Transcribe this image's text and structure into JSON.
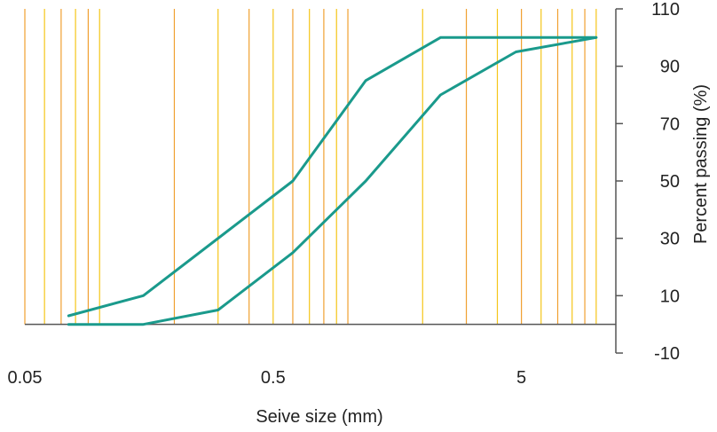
{
  "chart_data": {
    "type": "line",
    "title": "",
    "xlabel": "Seive size (mm)",
    "ylabel": "Percent passing (%)",
    "x_scale": "log",
    "xlim": [
      0.05,
      12
    ],
    "ylim": [
      -10,
      110
    ],
    "x_ticks": [
      0.05,
      0.5,
      5
    ],
    "x_tick_labels": [
      "0.05",
      "0.5",
      "5"
    ],
    "y_ticks": [
      110,
      90,
      70,
      50,
      30,
      10,
      -10
    ],
    "y_tick_labels": [
      "110",
      "90",
      "70",
      "50",
      "30",
      "10",
      "-10"
    ],
    "y_axis_position": "right",
    "grid": "vertical lines at log-decade subdivisions",
    "gridline_colors": [
      "#F0A030",
      "#F5C518"
    ],
    "series": [
      {
        "color": "#1A9A8C",
        "x": [
          0.075,
          0.15,
          0.6,
          1.18,
          2.36,
          4.75,
          10
        ],
        "y": [
          3,
          10,
          50,
          85,
          100,
          100,
          100
        ]
      },
      {
        "color": "#1A9A8C",
        "x": [
          0.075,
          0.15,
          0.3,
          0.6,
          1.18,
          2.36,
          4.75,
          10
        ],
        "y": [
          0,
          0,
          5,
          25,
          50,
          80,
          95,
          100
        ]
      }
    ]
  }
}
